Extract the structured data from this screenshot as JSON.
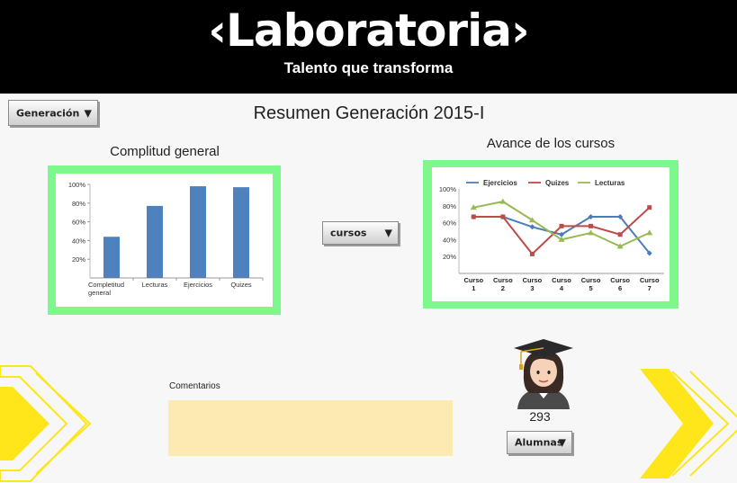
{
  "header": {
    "logo_text": "‹Laboratoria›",
    "tagline": "Talento que transforma",
    "background": "#000000"
  },
  "controls": {
    "generation_dropdown": "Generación",
    "courses_dropdown": "cursos",
    "students_dropdown": "Alumnas",
    "dropdown_arrow_icon": "triangle-down-icon"
  },
  "page": {
    "title": "Resumen Generación 2015-I"
  },
  "panels": {
    "left_title": "Complitud general",
    "right_title": "Avance de los cursos",
    "frame_color": "#7ef78d"
  },
  "chart_data": [
    {
      "type": "bar",
      "categories": [
        "Completitud general",
        "Lecturas",
        "Ejercicios",
        "Quizes"
      ],
      "values": [
        44,
        77,
        98,
        97
      ],
      "ylim": [
        0,
        100
      ],
      "yticks": [
        "20%",
        "40%",
        "60%",
        "80%",
        "100%"
      ],
      "grid": false,
      "color": "#4f81bd"
    },
    {
      "type": "line",
      "categories": [
        "Curso 1",
        "Curso 2",
        "Curso 3",
        "Curso 4",
        "Curso 5",
        "Curso 6",
        "Curso 7"
      ],
      "series": [
        {
          "name": "Ejercicios",
          "values": [
            67,
            67,
            55,
            46,
            67,
            67,
            24
          ],
          "color": "#4a7ebb"
        },
        {
          "name": "Quizes",
          "values": [
            67,
            67,
            23,
            56,
            56,
            46,
            78
          ],
          "color": "#be4b48"
        },
        {
          "name": "Lecturas",
          "values": [
            78,
            85,
            63,
            40,
            48,
            32,
            48
          ],
          "color": "#98b954"
        }
      ],
      "ylim": [
        0,
        100
      ],
      "yticks": [
        "20%",
        "40%",
        "60%",
        "80%",
        "100%"
      ],
      "legend": "top",
      "grid": false
    }
  ],
  "comments": {
    "label": "Comentarios",
    "value": ""
  },
  "students": {
    "avatar_icon": "graduate-student-icon",
    "count": "293"
  },
  "decor": {
    "chevron_color": "#ffe61a"
  }
}
